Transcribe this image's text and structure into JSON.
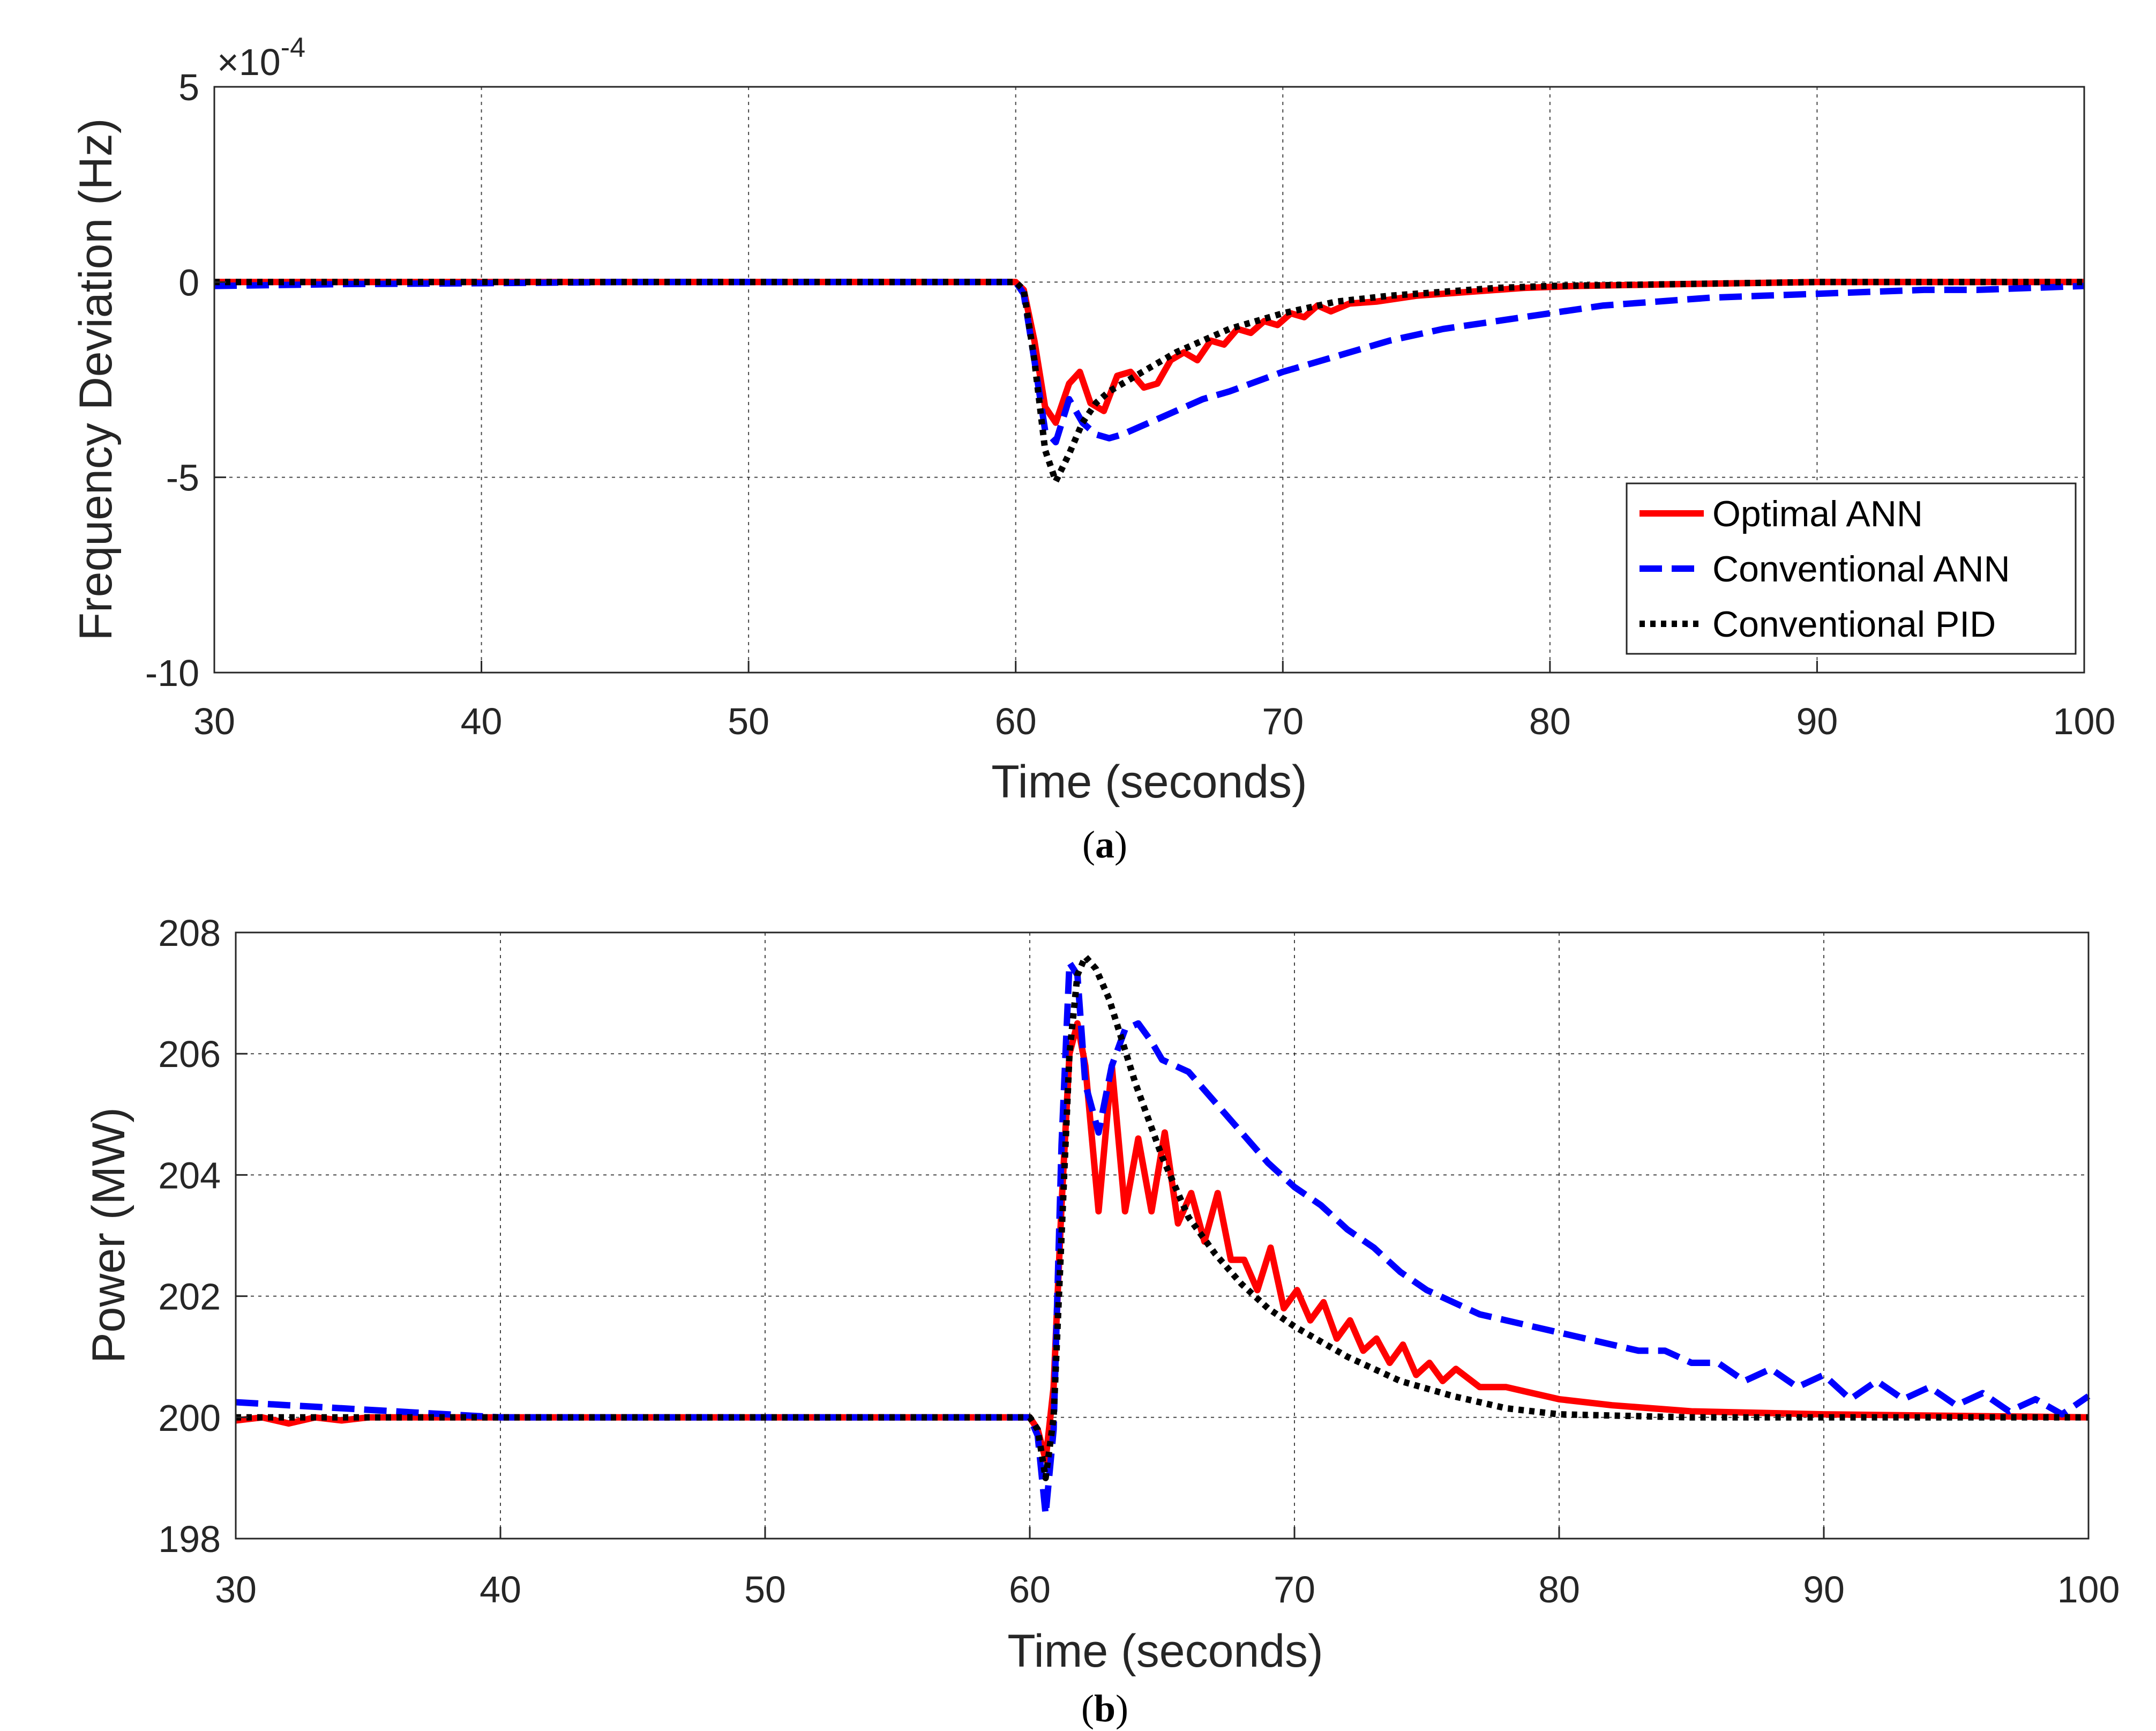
{
  "colors": {
    "optimal": "#ff0000",
    "conv_ann": "#0000ff",
    "pid": "#000000"
  },
  "chart_data": [
    {
      "id": "a",
      "type": "line",
      "panel": {
        "open": "(",
        "letter": "a",
        "close": ")"
      },
      "title": "",
      "xlabel": "Time (seconds)",
      "ylabel": "Frequency Deviation (Hz)",
      "exponent": {
        "base": "×10",
        "power": "-4"
      },
      "xlim": [
        30,
        100
      ],
      "ylim": [
        -10,
        5
      ],
      "xticks": [
        "30",
        "40",
        "50",
        "60",
        "70",
        "80",
        "90",
        "100"
      ],
      "yticks": [
        "5",
        "0",
        "-5",
        "-10"
      ],
      "grid": true,
      "legend": {
        "position": "right",
        "entries": [
          "Optimal ANN",
          "Conventional ANN",
          "Conventional PID"
        ]
      },
      "series": [
        {
          "name": "Optimal ANN",
          "color": "#ff0000",
          "dash": "solid",
          "x": [
            30,
            60,
            60.3,
            60.7,
            61.1,
            61.5,
            62.0,
            62.4,
            62.8,
            63.3,
            63.8,
            64.3,
            64.8,
            65.3,
            65.8,
            66.3,
            66.8,
            67.3,
            67.8,
            68.3,
            68.8,
            69.3,
            69.8,
            70.3,
            70.8,
            71.3,
            71.8,
            72.5,
            73.5,
            75,
            77,
            79,
            81,
            85,
            90,
            95,
            100
          ],
          "y": [
            0,
            0,
            -0.2,
            -1.5,
            -3.2,
            -3.6,
            -2.6,
            -2.3,
            -3.1,
            -3.3,
            -2.4,
            -2.3,
            -2.7,
            -2.6,
            -2.0,
            -1.8,
            -2.0,
            -1.5,
            -1.6,
            -1.2,
            -1.3,
            -1.0,
            -1.1,
            -0.8,
            -0.9,
            -0.6,
            -0.75,
            -0.55,
            -0.5,
            -0.35,
            -0.25,
            -0.15,
            -0.1,
            -0.05,
            0,
            0,
            0
          ]
        },
        {
          "name": "Conventional ANN",
          "color": "#0000ff",
          "dash": "dash",
          "x": [
            30,
            35,
            40,
            45,
            50,
            55,
            60,
            60.3,
            60.7,
            61.1,
            61.5,
            62.0,
            62.5,
            63.0,
            63.5,
            64,
            65,
            66,
            67,
            68,
            70,
            72,
            74,
            76,
            78,
            80,
            82,
            84,
            86,
            88,
            90,
            92,
            94,
            96,
            98,
            100
          ],
          "y": [
            -0.1,
            -0.05,
            -0.03,
            0,
            0,
            0,
            0,
            -0.3,
            -2.0,
            -3.8,
            -4.1,
            -3.0,
            -3.6,
            -3.9,
            -4.0,
            -3.9,
            -3.6,
            -3.3,
            -3.0,
            -2.8,
            -2.3,
            -1.9,
            -1.5,
            -1.2,
            -1.0,
            -0.8,
            -0.6,
            -0.5,
            -0.4,
            -0.35,
            -0.3,
            -0.25,
            -0.2,
            -0.2,
            -0.15,
            -0.1
          ]
        },
        {
          "name": "Conventional PID",
          "color": "#000000",
          "dash": "dot",
          "x": [
            30,
            60,
            60.3,
            60.7,
            61.1,
            61.5,
            62.0,
            62.5,
            63.0,
            63.5,
            64,
            65,
            66,
            67,
            68,
            70,
            72,
            74,
            76,
            78,
            80,
            85,
            90,
            100
          ],
          "y": [
            0,
            0,
            -0.2,
            -2.0,
            -4.3,
            -5.1,
            -4.4,
            -3.6,
            -3.1,
            -2.8,
            -2.6,
            -2.2,
            -1.8,
            -1.5,
            -1.2,
            -0.8,
            -0.5,
            -0.35,
            -0.25,
            -0.15,
            -0.1,
            -0.05,
            0,
            0
          ]
        }
      ]
    },
    {
      "id": "b",
      "type": "line",
      "panel": {
        "open": "(",
        "letter": "b",
        "close": ")"
      },
      "title": "",
      "xlabel": "Time (seconds)",
      "ylabel": "Power (MW)",
      "xlim": [
        30,
        100
      ],
      "ylim": [
        198,
        208
      ],
      "xticks": [
        "30",
        "40",
        "50",
        "60",
        "70",
        "80",
        "90",
        "100"
      ],
      "yticks": [
        "208",
        "206",
        "204",
        "202",
        "200",
        "198"
      ],
      "grid": true,
      "series": [
        {
          "name": "Optimal ANN",
          "color": "#ff0000",
          "dash": "solid",
          "x": [
            30,
            31,
            32,
            33,
            34,
            35,
            40,
            60,
            60.3,
            60.6,
            60.9,
            61.2,
            61.5,
            61.8,
            62.1,
            62.6,
            63.1,
            63.6,
            64.1,
            64.6,
            65.1,
            65.6,
            66.1,
            66.6,
            67.1,
            67.6,
            68.1,
            68.6,
            69.1,
            69.6,
            70.1,
            70.6,
            71.1,
            71.6,
            72.1,
            72.6,
            73.1,
            73.6,
            74.1,
            74.6,
            75.1,
            75.6,
            76.1,
            77,
            78,
            79,
            80,
            82,
            85,
            90,
            100
          ],
          "y": [
            199.95,
            200.0,
            199.9,
            200.0,
            199.95,
            200.0,
            200.0,
            200.0,
            199.8,
            199.3,
            200.5,
            203.5,
            206.0,
            206.5,
            205.8,
            203.4,
            205.8,
            203.4,
            204.6,
            203.4,
            204.7,
            203.2,
            203.7,
            202.9,
            203.7,
            202.6,
            202.6,
            202.1,
            202.8,
            201.8,
            202.1,
            201.6,
            201.9,
            201.3,
            201.6,
            201.1,
            201.3,
            200.9,
            201.2,
            200.7,
            200.9,
            200.6,
            200.8,
            200.5,
            200.5,
            200.4,
            200.3,
            200.2,
            200.1,
            200.05,
            200.0
          ]
        },
        {
          "name": "Conventional ANN",
          "color": "#0000ff",
          "dash": "dash",
          "x": [
            30,
            32,
            34,
            36,
            38,
            40,
            45,
            50,
            55,
            60,
            60.3,
            60.6,
            60.9,
            61.2,
            61.5,
            61.8,
            62.1,
            62.6,
            63.1,
            63.6,
            64.1,
            64.6,
            65,
            66,
            67,
            68,
            69,
            70,
            71,
            72,
            73,
            74,
            75,
            76,
            77,
            78,
            79,
            80,
            81,
            82,
            83,
            84,
            85,
            86,
            87,
            88,
            89,
            90,
            91,
            92,
            93,
            94,
            95,
            96,
            97,
            98,
            99,
            100
          ],
          "y": [
            200.25,
            200.2,
            200.15,
            200.1,
            200.05,
            200.0,
            200.0,
            200.0,
            200.0,
            200.0,
            199.7,
            198.4,
            199.8,
            204.5,
            207.5,
            207.3,
            205.5,
            204.7,
            205.8,
            206.4,
            206.5,
            206.2,
            205.9,
            205.7,
            205.2,
            204.7,
            204.2,
            203.8,
            203.5,
            203.1,
            202.8,
            202.4,
            202.1,
            201.9,
            201.7,
            201.6,
            201.5,
            201.4,
            201.3,
            201.2,
            201.1,
            201.1,
            200.9,
            200.9,
            200.6,
            200.8,
            200.5,
            200.7,
            200.3,
            200.6,
            200.3,
            200.5,
            200.2,
            200.4,
            200.1,
            200.3,
            200.05,
            200.35
          ]
        },
        {
          "name": "Conventional PID",
          "color": "#000000",
          "dash": "dot",
          "x": [
            30,
            60,
            60.3,
            60.6,
            60.9,
            61.2,
            61.5,
            61.8,
            62.1,
            62.5,
            63,
            63.5,
            64,
            65,
            66,
            67,
            68,
            69,
            70,
            72,
            74,
            76,
            78,
            80,
            85,
            90,
            100
          ],
          "y": [
            200.0,
            200.0,
            199.8,
            199.0,
            200.0,
            203.0,
            206.0,
            207.3,
            207.6,
            207.4,
            206.9,
            206.2,
            205.5,
            204.3,
            203.3,
            202.7,
            202.2,
            201.8,
            201.5,
            201.0,
            200.6,
            200.35,
            200.15,
            200.05,
            200.0,
            200.0,
            200.0
          ]
        }
      ]
    }
  ]
}
